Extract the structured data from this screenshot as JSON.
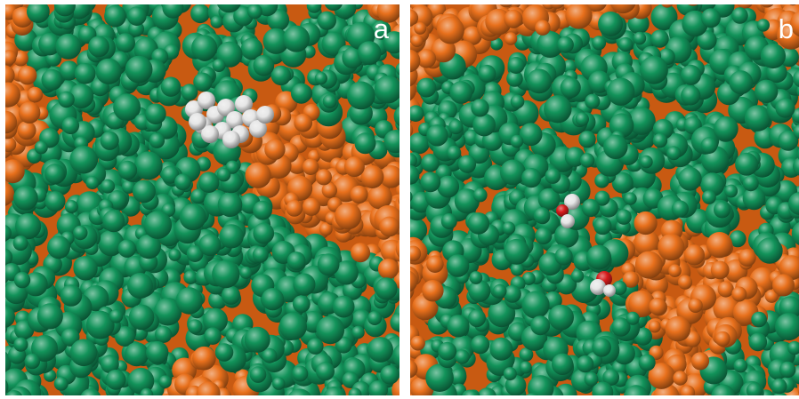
{
  "panels": [
    {
      "label": "a",
      "solute": "white-chain-molecule",
      "colors": {
        "orange": "#e8701c",
        "green": "#12935a",
        "molecule": "#e6e6e6",
        "oxygen": "#d61c1c"
      }
    },
    {
      "label": "b",
      "solute": "water-molecules",
      "colors": {
        "orange": "#e8701c",
        "green": "#12935a",
        "molecule": "#e6e6e6",
        "oxygen": "#d61c1c"
      }
    }
  ]
}
